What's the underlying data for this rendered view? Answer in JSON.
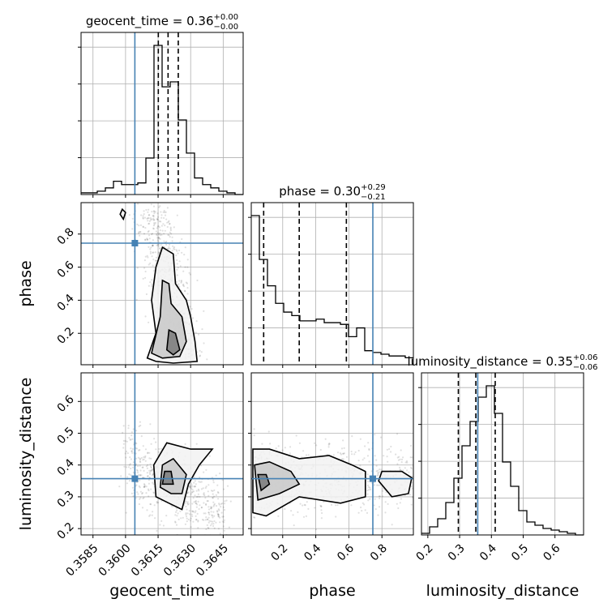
{
  "chart_data": {
    "type": "corner",
    "parameters": [
      "geocent_time",
      "phase",
      "luminosity_distance"
    ],
    "axis_labels": {
      "x": [
        "geocent_time",
        "phase",
        "luminosity_distance"
      ],
      "y": [
        "phase",
        "luminosity_distance"
      ]
    },
    "titles": [
      {
        "prefix": "geocent_time = 0.36",
        "plus": "+0.00",
        "minus": "−0.00"
      },
      {
        "prefix": "phase = 0.30",
        "plus": "+0.29",
        "minus": "−0.21"
      },
      {
        "prefix": "luminosity_distance = 0.35",
        "plus": "+0.06",
        "minus": "−0.06"
      }
    ],
    "ranges": {
      "geocent_time": [
        0.35795,
        0.36542
      ],
      "phase": [
        0.01,
        0.99
      ],
      "luminosity_distance": [
        0.18,
        0.69
      ]
    },
    "ticks": {
      "geocent_time": [
        {
          "v": 0.3585,
          "label": "0.3585"
        },
        {
          "v": 0.36,
          "label": "0.3600"
        },
        {
          "v": 0.3615,
          "label": "0.3615"
        },
        {
          "v": 0.363,
          "label": "0.3630"
        },
        {
          "v": 0.3645,
          "label": "0.3645"
        }
      ],
      "phase": [
        {
          "v": 0.2,
          "label": "0.2"
        },
        {
          "v": 0.4,
          "label": "0.4"
        },
        {
          "v": 0.6,
          "label": "0.6"
        },
        {
          "v": 0.8,
          "label": "0.8"
        }
      ],
      "luminosity_distance": [
        {
          "v": 0.2,
          "label": "0.2"
        },
        {
          "v": 0.3,
          "label": "0.3"
        },
        {
          "v": 0.4,
          "label": "0.4"
        },
        {
          "v": 0.5,
          "label": "0.5"
        },
        {
          "v": 0.6,
          "label": "0.6"
        }
      ]
    },
    "truths": {
      "geocent_time": 0.36043,
      "phase": 0.745,
      "luminosity_distance": 0.357
    },
    "quantiles": {
      "geocent_time": [
        0.36151,
        0.36196,
        0.36243
      ],
      "phase": [
        0.085,
        0.3,
        0.585
      ],
      "luminosity_distance": [
        0.296,
        0.351,
        0.412
      ]
    },
    "histograms": {
      "geocent_time": [
        0.01,
        0.01,
        0.02,
        0.04,
        0.08,
        0.06,
        0.06,
        0.07,
        0.22,
        0.9,
        0.65,
        0.68,
        0.45,
        0.25,
        0.1,
        0.06,
        0.04,
        0.02,
        0.01,
        0.0
      ],
      "phase": [
        0.85,
        0.6,
        0.45,
        0.35,
        0.3,
        0.28,
        0.25,
        0.25,
        0.26,
        0.24,
        0.24,
        0.23,
        0.16,
        0.21,
        0.08,
        0.07,
        0.06,
        0.05,
        0.05,
        0.04
      ],
      "luminosity_distance": [
        0.01,
        0.05,
        0.1,
        0.2,
        0.35,
        0.55,
        0.7,
        0.85,
        0.92,
        0.75,
        0.45,
        0.3,
        0.15,
        0.08,
        0.06,
        0.04,
        0.03,
        0.02,
        0.01,
        0.0
      ]
    },
    "grid": true
  }
}
